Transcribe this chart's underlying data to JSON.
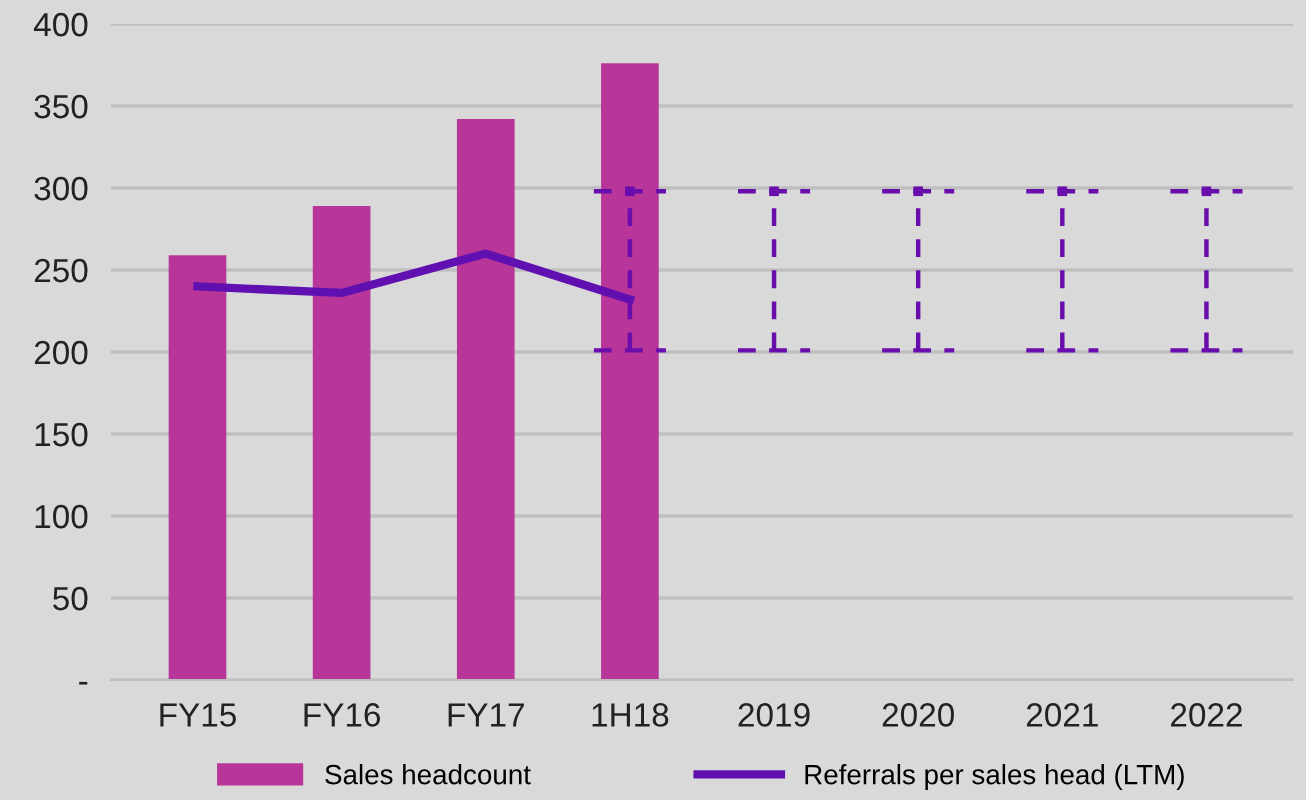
{
  "chart_data": {
    "type": "bar",
    "categories": [
      "FY15",
      "FY16",
      "FY17",
      "1H18",
      "2019",
      "2020",
      "2021",
      "2022"
    ],
    "series": [
      {
        "name": "Sales headcount",
        "color": "#b8359a",
        "values": [
          259,
          289,
          342,
          376,
          null,
          null,
          null,
          null
        ]
      },
      {
        "name": "Referrals per sales head (LTM)",
        "type": "line",
        "color": "#6010b0",
        "values": [
          240,
          236,
          260,
          232,
          null,
          null,
          null,
          null
        ]
      },
      {
        "type": "scatter",
        "color": "#6a0dad",
        "marker": "square",
        "line_style": "dashed",
        "values": [
          null,
          null,
          null,
          298,
          298,
          298,
          298,
          298
        ],
        "errors": [
          null,
          null,
          null,
          [
            201,
            298
          ],
          [
            201,
            298
          ],
          [
            201,
            298
          ],
          [
            201,
            298
          ],
          [
            201,
            298
          ]
        ]
      }
    ],
    "ylim": [
      0,
      400
    ],
    "yticks": [
      {
        "value": 0,
        "label": "-"
      },
      50,
      100,
      150,
      200,
      250,
      300,
      350,
      400
    ],
    "grid": "y",
    "legend": "bottom"
  }
}
